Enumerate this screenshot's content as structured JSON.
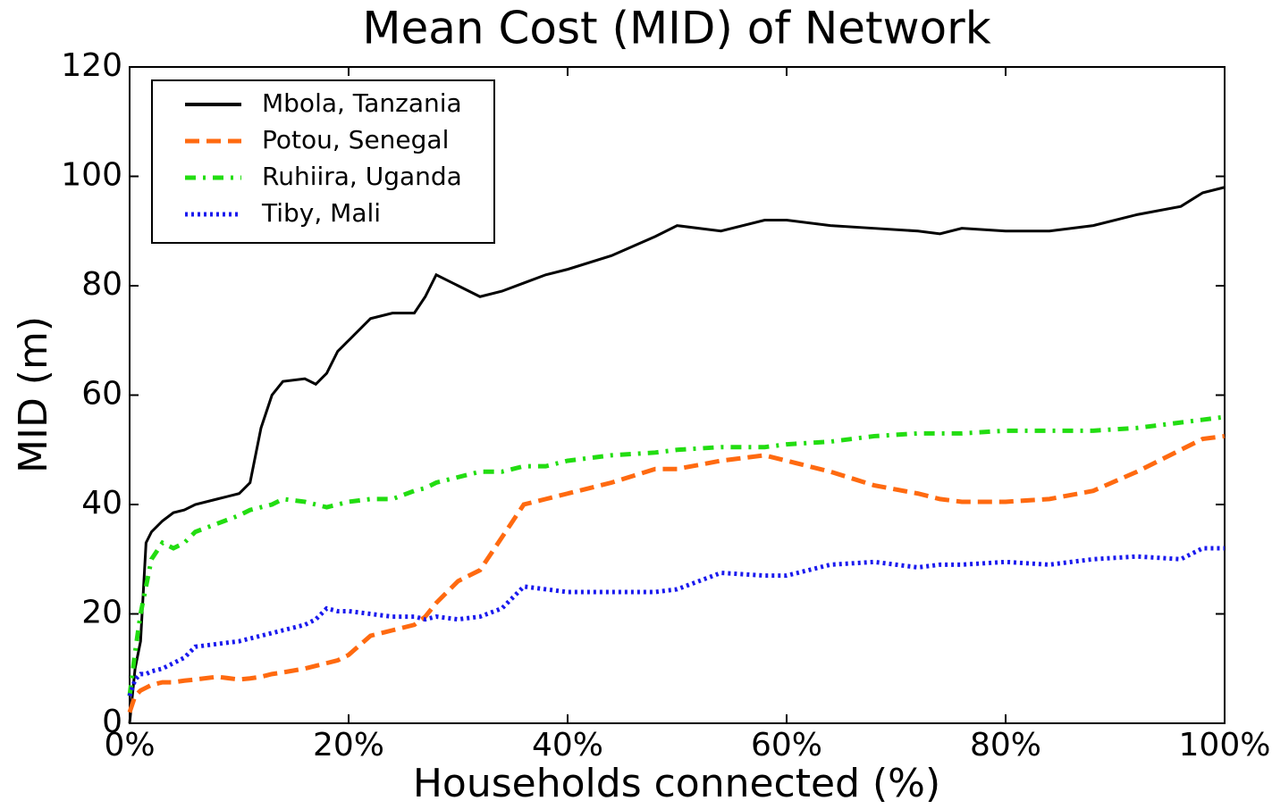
{
  "chart_data": {
    "type": "line",
    "title": "Mean Cost (MID) of Network",
    "x_label": "Households connected (%)",
    "y_label": "MID (m)",
    "x": [
      0,
      0.5,
      1,
      1.5,
      2,
      3,
      4,
      5,
      6,
      8,
      10,
      11,
      12,
      13,
      14,
      16,
      17,
      18,
      19,
      20,
      22,
      24,
      26,
      27,
      28,
      30,
      32,
      34,
      36,
      38,
      40,
      44,
      48,
      50,
      54,
      58,
      60,
      64,
      68,
      72,
      74,
      76,
      80,
      84,
      88,
      92,
      96,
      98,
      100
    ],
    "series": [
      {
        "name": "Mbola, Tanzania",
        "color": "#000000",
        "dash": "solid",
        "values": [
          0,
          10,
          15,
          33,
          35,
          37,
          38.5,
          39,
          40,
          41,
          42,
          44,
          54,
          60,
          62.5,
          63,
          62,
          64,
          68,
          70,
          74,
          75,
          75,
          78,
          82,
          80,
          78,
          79,
          80.5,
          82,
          83,
          85.5,
          89,
          91,
          90,
          92,
          92,
          91,
          90.5,
          90,
          89.5,
          90.5,
          90,
          90,
          91,
          93,
          94.5,
          97,
          98
        ]
      },
      {
        "name": "Potou, Senegal",
        "color": "#ff6a10",
        "dash": "dashed",
        "values": [
          2,
          5,
          6,
          6.5,
          7,
          7.5,
          7.5,
          7.8,
          8,
          8.5,
          8,
          8.2,
          8.5,
          9,
          9.3,
          10,
          10.5,
          11,
          11.5,
          12.5,
          16,
          17,
          18,
          19.5,
          22,
          26,
          28,
          34,
          40,
          41,
          42,
          44,
          46.5,
          46.5,
          48,
          49,
          48,
          46,
          43.5,
          42,
          41,
          40.5,
          40.5,
          41,
          42.5,
          46,
          50,
          52,
          52.5
        ]
      },
      {
        "name": "Ruhiira, Uganda",
        "color": "#22dd11",
        "dash": "dashdot",
        "values": [
          5,
          13,
          20,
          25,
          30,
          33,
          32,
          33,
          35,
          36.5,
          38,
          39,
          39.5,
          40,
          41,
          40.5,
          40,
          39.5,
          40,
          40.5,
          41,
          41,
          42.5,
          43,
          44,
          45,
          46,
          46,
          47,
          47,
          48,
          49,
          49.5,
          50,
          50.5,
          50.5,
          51,
          51.5,
          52.5,
          53,
          53,
          53,
          53.5,
          53.5,
          53.5,
          54,
          55,
          55.5,
          56
        ]
      },
      {
        "name": "Tiby, Mali",
        "color": "#1a1aee",
        "dash": "dotted",
        "values": [
          5,
          8,
          9,
          9,
          9.5,
          10,
          11,
          12,
          14,
          14.5,
          15,
          15.5,
          16,
          16.5,
          17,
          18,
          19,
          21,
          20.5,
          20.5,
          20,
          19.5,
          19.5,
          19,
          19.5,
          19,
          19.5,
          21,
          25,
          24.5,
          24,
          24,
          24,
          24.5,
          27.5,
          27,
          27,
          29,
          29.5,
          28.5,
          29,
          29,
          29.5,
          29,
          30,
          30.5,
          30,
          32,
          32
        ]
      }
    ],
    "xlim": [
      0,
      100
    ],
    "xticks": [
      {
        "value": 0,
        "label": "0%"
      },
      {
        "value": 20,
        "label": "20%"
      },
      {
        "value": 40,
        "label": "40%"
      },
      {
        "value": 60,
        "label": "60%"
      },
      {
        "value": 80,
        "label": "80%"
      },
      {
        "value": 100,
        "label": "100%"
      }
    ],
    "ylim": [
      0,
      120
    ],
    "yticks": [
      0,
      20,
      40,
      60,
      80,
      100,
      120
    ],
    "legend": "upper left",
    "grid": false
  }
}
